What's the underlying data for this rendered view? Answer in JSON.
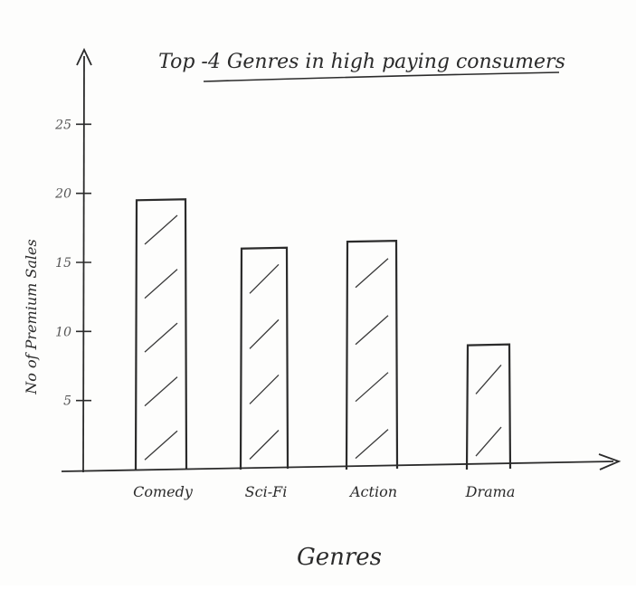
{
  "chart_data": {
    "type": "bar",
    "title": "Top -4 Genres in high paying consumers",
    "xlabel": "Genres",
    "ylabel": "No of Premium Sales",
    "categories": [
      "Comedy",
      "Sci-Fi",
      "Action",
      "Drama"
    ],
    "values": [
      19.5,
      16,
      16.5,
      9
    ],
    "yticks": [
      "5",
      "10",
      "15",
      "20",
      "25"
    ],
    "ylim": [
      0,
      30
    ],
    "grid": false,
    "legend": "none",
    "colors": {
      "ink": "#2b2b2b",
      "hatch": "#3a3a3a",
      "background": "#fdfdfc"
    }
  }
}
